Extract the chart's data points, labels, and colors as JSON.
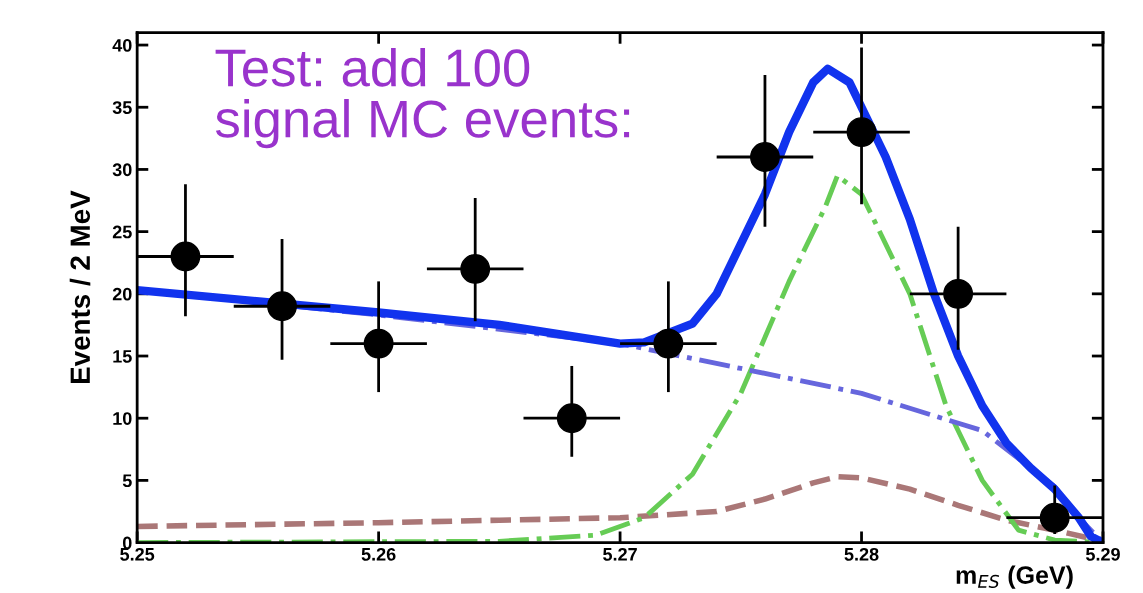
{
  "chart_data": {
    "type": "line",
    "xlabel": "m$_{ES}$ (GeV)",
    "ylabel": "Events / 2 MeV",
    "xlim": [
      5.25,
      5.29
    ],
    "xticks": [
      5.25,
      5.26,
      5.27,
      5.28,
      5.29
    ],
    "ylim": [
      0,
      41
    ],
    "yticks": [
      0,
      5,
      10,
      15,
      20,
      25,
      30,
      35,
      40
    ],
    "grid": false,
    "legend": false,
    "annotations": [
      "Test: add 100\nsignal MC events:"
    ],
    "series": [
      {
        "color": "#aa7777",
        "line_style": "dashed",
        "x": [
          5.25,
          5.26,
          5.265,
          5.27,
          5.274,
          5.276,
          5.278,
          5.279,
          5.28,
          5.282,
          5.284,
          5.286,
          5.288,
          5.29
        ],
        "values": [
          1.3,
          1.6,
          1.8,
          2.0,
          2.5,
          3.5,
          4.8,
          5.3,
          5.2,
          4.3,
          3.0,
          1.8,
          1.0,
          0.1
        ]
      },
      {
        "color": "#66cc55",
        "line_style": "dashdot",
        "x": [
          5.25,
          5.265,
          5.269,
          5.271,
          5.273,
          5.275,
          5.277,
          5.2785,
          5.279,
          5.28,
          5.282,
          5.2835,
          5.285,
          5.2865,
          5.288,
          5.29
        ],
        "values": [
          0,
          0.1,
          0.6,
          2.0,
          5.5,
          12,
          21,
          27,
          29.5,
          28,
          20,
          11,
          5,
          1,
          0.2,
          0
        ]
      },
      {
        "color": "#6666dd",
        "line_style": "dashdot",
        "x": [
          5.25,
          5.26,
          5.27,
          5.275,
          5.28,
          5.285,
          5.288,
          5.289,
          5.29
        ],
        "values": [
          20.3,
          18.3,
          16,
          14,
          12,
          9,
          4.5,
          2,
          0
        ]
      },
      {
        "color": "#1133ee",
        "line_style": "solid",
        "x": [
          5.25,
          5.26,
          5.265,
          5.27,
          5.271,
          5.273,
          5.274,
          5.276,
          5.277,
          5.278,
          5.2786,
          5.2795,
          5.28,
          5.281,
          5.282,
          5.283,
          5.284,
          5.285,
          5.286,
          5.287,
          5.288,
          5.289,
          5.2895,
          5.29
        ],
        "values": [
          20.3,
          18.5,
          17.5,
          16,
          16.1,
          17.6,
          20,
          28,
          33,
          37,
          38.1,
          37,
          35,
          31,
          26,
          20,
          15,
          11,
          8,
          6,
          4.3,
          2,
          0.5,
          0
        ]
      },
      {
        "type": "scatter",
        "color": "#000000",
        "marker": "circle",
        "x": [
          5.252,
          5.256,
          5.26,
          5.264,
          5.268,
          5.272,
          5.276,
          5.28,
          5.284,
          5.288
        ],
        "values": [
          23,
          19,
          16,
          22,
          10,
          16,
          31,
          33,
          20,
          2
        ],
        "errors": [
          [
            18.2,
            28.8
          ],
          [
            14.7,
            24.4
          ],
          [
            12.1,
            21.0
          ],
          [
            17.8,
            27.7
          ],
          [
            6.9,
            14.2
          ],
          [
            12.1,
            21.0
          ],
          [
            25.4,
            37.6
          ],
          [
            27.2,
            39.8
          ],
          [
            15.5,
            25.4
          ],
          [
            0.7,
            4.6
          ]
        ],
        "xerrors": [
          0.002,
          0.002,
          0.002,
          0.002,
          0.002,
          0.002,
          0.002,
          0.002,
          0.002,
          0.002
        ]
      }
    ]
  }
}
